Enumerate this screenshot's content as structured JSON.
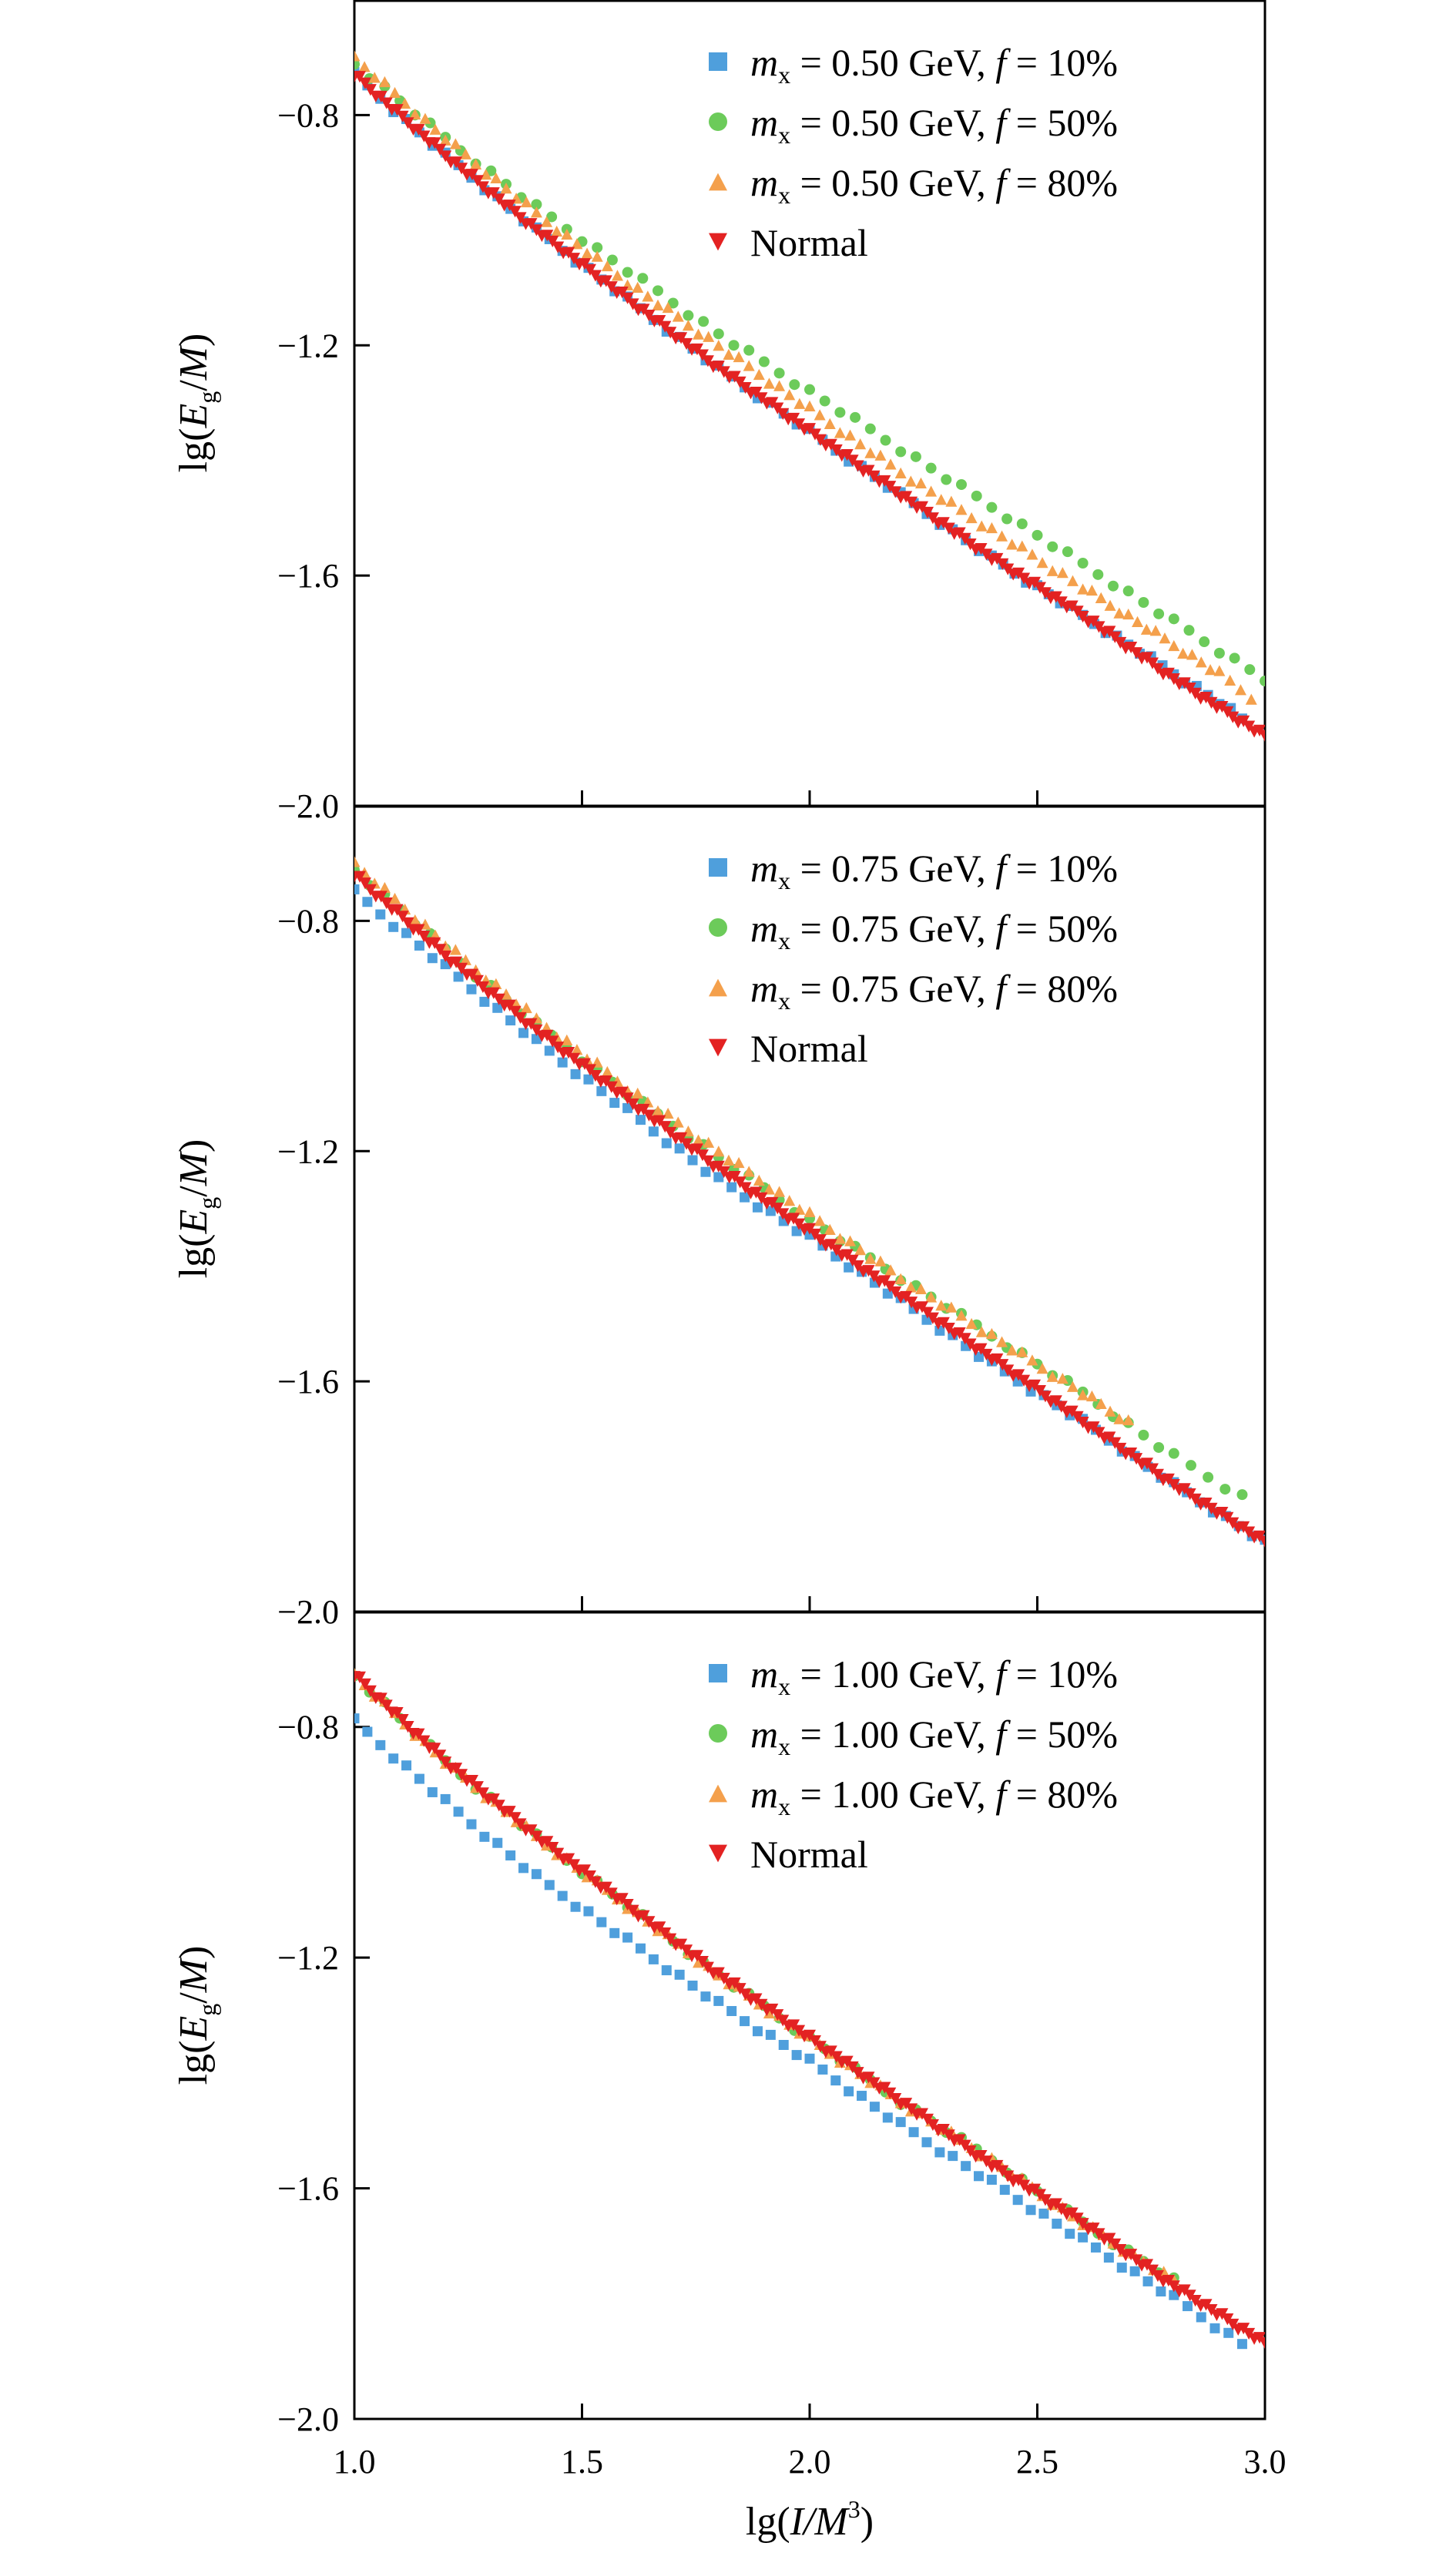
{
  "chart_data": [
    {
      "type": "scatter",
      "ylabel": {
        "pre": "lg(",
        "var": "E",
        "sub": "g",
        "post": "/M)"
      },
      "xlim": [
        1.0,
        3.0
      ],
      "ylim": [
        -2.0,
        -0.6
      ],
      "yticks": [
        "−0.8",
        "−1.2",
        "−1.6",
        "−2.0"
      ],
      "legend_position": "top-right",
      "series": [
        {
          "name": "mx = 0.50 GeV, f = 10%",
          "mx": "0.50",
          "f": "10%",
          "marker": "square",
          "color": "#4f9fdc",
          "x": [
            1.0,
            1.2,
            1.4,
            1.6,
            1.8,
            2.0,
            2.2,
            2.4,
            2.5,
            2.6,
            2.7,
            2.8,
            2.9,
            2.95
          ],
          "y": [
            -0.73,
            -0.87,
            -1.0,
            -1.12,
            -1.24,
            -1.35,
            -1.46,
            -1.57,
            -1.62,
            -1.67,
            -1.72,
            -1.77,
            -1.82,
            -1.85
          ]
        },
        {
          "name": "mx = 0.50 GeV, f = 50%",
          "mx": "0.50",
          "f": "50%",
          "marker": "circle",
          "color": "#6ccb5a",
          "x": [
            1.0,
            1.2,
            1.4,
            1.6,
            1.8,
            2.0,
            2.2,
            2.4,
            2.6,
            2.7,
            2.8,
            2.9,
            3.0
          ],
          "y": [
            -0.71,
            -0.84,
            -0.96,
            -1.07,
            -1.18,
            -1.28,
            -1.38,
            -1.48,
            -1.58,
            -1.63,
            -1.68,
            -1.73,
            -1.78
          ]
        },
        {
          "name": "mx = 0.50 GeV, f = 80%",
          "mx": "0.50",
          "f": "80%",
          "marker": "triangle-up",
          "color": "#f4a04c",
          "x": [
            1.0,
            1.2,
            1.4,
            1.6,
            1.8,
            2.0,
            2.2,
            2.4,
            2.6,
            2.7,
            2.8,
            2.9,
            2.97
          ],
          "y": [
            -0.7,
            -0.84,
            -0.97,
            -1.09,
            -1.2,
            -1.31,
            -1.42,
            -1.52,
            -1.62,
            -1.67,
            -1.72,
            -1.77,
            -1.81
          ]
        },
        {
          "name": "Normal",
          "marker": "triangle-down",
          "color": "#e32222",
          "x": [
            1.0,
            1.2,
            1.4,
            1.6,
            1.8,
            2.0,
            2.2,
            2.4,
            2.6,
            2.8,
            3.0
          ],
          "y": [
            -0.73,
            -0.87,
            -1.0,
            -1.12,
            -1.24,
            -1.35,
            -1.46,
            -1.57,
            -1.67,
            -1.78,
            -1.88
          ]
        }
      ]
    },
    {
      "type": "scatter",
      "ylabel": {
        "pre": "lg(",
        "var": "E",
        "sub": "g",
        "post": "/M)"
      },
      "xlim": [
        1.0,
        3.0
      ],
      "ylim": [
        -2.0,
        -0.6
      ],
      "yticks": [
        "−0.8",
        "−1.2",
        "−1.6",
        "−2.0"
      ],
      "legend_position": "top-right",
      "series": [
        {
          "name": "mx = 0.75 GeV, f = 10%",
          "mx": "0.75",
          "f": "10%",
          "marker": "square",
          "color": "#4f9fdc",
          "x": [
            1.0,
            1.2,
            1.4,
            1.6,
            1.8,
            2.0,
            2.2,
            2.4,
            2.6,
            2.8,
            3.0
          ],
          "y": [
            -0.75,
            -0.88,
            -1.01,
            -1.13,
            -1.25,
            -1.35,
            -1.46,
            -1.57,
            -1.67,
            -1.78,
            -1.88
          ]
        },
        {
          "name": "mx = 0.75 GeV, f = 50%",
          "mx": "0.75",
          "f": "50%",
          "marker": "circle",
          "color": "#6ccb5a",
          "x": [
            1.0,
            1.2,
            1.4,
            1.6,
            1.8,
            2.0,
            2.2,
            2.4,
            2.6,
            2.8,
            2.95
          ],
          "y": [
            -0.71,
            -0.85,
            -0.98,
            -1.1,
            -1.21,
            -1.32,
            -1.42,
            -1.52,
            -1.62,
            -1.73,
            -1.8
          ]
        },
        {
          "name": "mx = 0.75 GeV, f = 80%",
          "mx": "0.75",
          "f": "80%",
          "marker": "triangle-up",
          "color": "#f4a04c",
          "x": [
            1.0,
            1.2,
            1.4,
            1.6,
            1.8,
            2.0,
            2.2,
            2.4,
            2.6,
            2.7
          ],
          "y": [
            -0.7,
            -0.84,
            -0.97,
            -1.09,
            -1.2,
            -1.31,
            -1.42,
            -1.52,
            -1.62,
            -1.67
          ]
        },
        {
          "name": "Normal",
          "marker": "triangle-down",
          "color": "#e32222",
          "x": [
            1.0,
            1.2,
            1.4,
            1.6,
            1.8,
            2.0,
            2.2,
            2.4,
            2.6,
            2.8,
            3.0
          ],
          "y": [
            -0.72,
            -0.86,
            -0.99,
            -1.11,
            -1.23,
            -1.34,
            -1.45,
            -1.56,
            -1.67,
            -1.78,
            -1.88
          ]
        }
      ]
    },
    {
      "type": "scatter",
      "ylabel": {
        "pre": "lg(",
        "var": "E",
        "sub": "g",
        "post": "/M)"
      },
      "xlabel": {
        "pre": "lg(",
        "var": "I/M",
        "sup": "3",
        "post": ")"
      },
      "xlim": [
        1.0,
        3.0
      ],
      "ylim": [
        -2.0,
        -0.6
      ],
      "xticks": [
        "1.0",
        "1.5",
        "2.0",
        "2.5",
        "3.0"
      ],
      "yticks": [
        "−0.8",
        "−1.2",
        "−1.6",
        "−2.0"
      ],
      "legend_position": "top-right",
      "series": [
        {
          "name": "mx = 1.00 GeV, f = 10%",
          "mx": "1.00",
          "f": "10%",
          "marker": "square",
          "color": "#4f9fdc",
          "x": [
            1.0,
            1.2,
            1.4,
            1.6,
            1.8,
            2.0,
            2.2,
            2.4,
            2.6,
            2.8,
            2.95
          ],
          "y": [
            -0.79,
            -0.93,
            -1.06,
            -1.17,
            -1.28,
            -1.38,
            -1.49,
            -1.59,
            -1.69,
            -1.79,
            -1.87
          ]
        },
        {
          "name": "mx = 1.00 GeV, f = 50%",
          "mx": "1.00",
          "f": "50%",
          "marker": "circle",
          "color": "#6ccb5a",
          "x": [
            1.0,
            1.2,
            1.4,
            1.6,
            1.8,
            2.0,
            2.2,
            2.4,
            2.6,
            2.8
          ],
          "y": [
            -0.71,
            -0.86,
            -0.99,
            -1.11,
            -1.23,
            -1.34,
            -1.45,
            -1.55,
            -1.66,
            -1.76
          ]
        },
        {
          "name": "mx = 1.00 GeV, f = 80%",
          "mx": "1.00",
          "f": "80%",
          "marker": "triangle-up",
          "color": "#f4a04c",
          "x": [
            1.0,
            1.2,
            1.4,
            1.6,
            1.8,
            2.0,
            2.2,
            2.4,
            2.6,
            2.8
          ],
          "y": [
            -0.71,
            -0.86,
            -0.99,
            -1.11,
            -1.23,
            -1.34,
            -1.45,
            -1.55,
            -1.66,
            -1.76
          ]
        },
        {
          "name": "Normal",
          "marker": "triangle-down",
          "color": "#e32222",
          "x": [
            1.0,
            1.2,
            1.4,
            1.6,
            1.8,
            2.0,
            2.2,
            2.4,
            2.6,
            2.8,
            3.0
          ],
          "y": [
            -0.71,
            -0.86,
            -0.99,
            -1.11,
            -1.23,
            -1.34,
            -1.45,
            -1.56,
            -1.66,
            -1.77,
            -1.87
          ]
        }
      ]
    }
  ]
}
